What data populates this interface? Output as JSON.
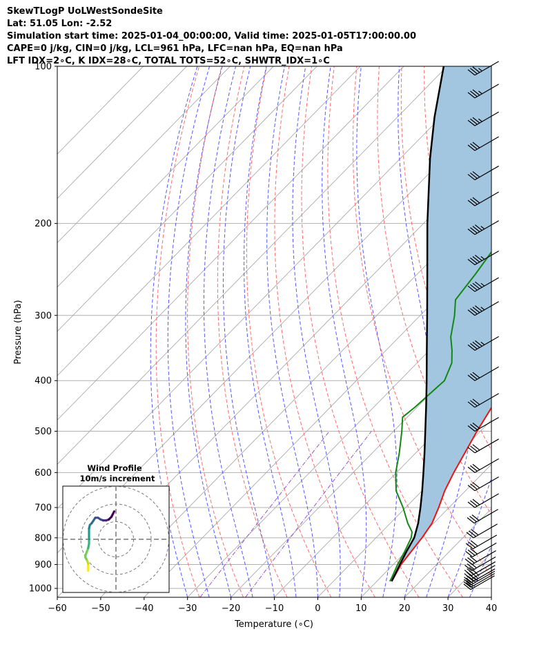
{
  "header": {
    "title": "SkewTLogP UoLWestSondeSite",
    "location": "Lat: 51.05   Lon: -2.52",
    "times": "Simulation start time: 2025-01-04_00:00:00, Valid time: 2025-01-05T17:00:00.00",
    "params": "CAPE=0 j/kg, CIN=0 j/kg, LCL=961 hPa, LFC=nan hPa, EQ=nan hPa",
    "indices": "LFT IDX=2∘C, K IDX=28∘C, TOTAL TOTS=52∘C, SHWTR_IDX=1∘C"
  },
  "colors": {
    "temperature": "#ee1111",
    "dewpoint": "#118811",
    "parcel": "#000000",
    "cape_fill": "#a3c6e0",
    "dry_adiabat": "#ff6b6b",
    "moist_adiabat": "#5555ff",
    "mixing_ratio": "#9a4fcf",
    "isotherm": "#aaaaaa"
  },
  "chart_data": {
    "type": "skewt",
    "xlabel": "Temperature (∘C)",
    "ylabel": "Pressure (hPa)",
    "xlim": [
      -60,
      40
    ],
    "ylim": [
      1040,
      100
    ],
    "x_ticks": [
      "−60",
      "−50",
      "−40",
      "−30",
      "−20",
      "−10",
      "0",
      "10",
      "20",
      "30",
      "40"
    ],
    "y_ticks": [
      "100",
      "200",
      "300",
      "400",
      "500",
      "600",
      "700",
      "800",
      "900",
      "1000"
    ],
    "grid": true,
    "series": [
      {
        "key": "temperature",
        "points": [
          [
            969,
            13.4
          ],
          [
            950,
            13.0
          ],
          [
            900,
            11.8
          ],
          [
            850,
            11.2
          ],
          [
            800,
            10.6
          ],
          [
            750,
            9.6
          ],
          [
            700,
            7.6
          ],
          [
            650,
            5.2
          ],
          [
            600,
            3.2
          ],
          [
            550,
            1.3
          ],
          [
            500,
            -0.8
          ],
          [
            450,
            -2.8
          ],
          [
            400,
            -4.5
          ],
          [
            350,
            -8.0
          ],
          [
            300,
            -12.8
          ],
          [
            275,
            -14.5
          ],
          [
            250,
            -15.8
          ],
          [
            225,
            -17.0
          ],
          [
            200,
            -18.0
          ],
          [
            175,
            -17.5
          ],
          [
            150,
            -15.5
          ],
          [
            125,
            -13.5
          ],
          [
            110,
            -12.0
          ],
          [
            100,
            -11.5
          ]
        ]
      },
      {
        "key": "dewpoint",
        "points": [
          [
            969,
            13.0
          ],
          [
            950,
            12.5
          ],
          [
            900,
            11.0
          ],
          [
            850,
            9.7
          ],
          [
            800,
            8.1
          ],
          [
            780,
            7.0
          ],
          [
            750,
            4.0
          ],
          [
            700,
            -0.6
          ],
          [
            650,
            -6.0
          ],
          [
            600,
            -10.2
          ],
          [
            550,
            -13.8
          ],
          [
            500,
            -18.1
          ],
          [
            470,
            -21.1
          ],
          [
            450,
            -20.5
          ],
          [
            400,
            -19.7
          ],
          [
            370,
            -22.0
          ],
          [
            350,
            -24.8
          ],
          [
            330,
            -28.1
          ],
          [
            300,
            -32.1
          ],
          [
            280,
            -35.4
          ],
          [
            250,
            -36.6
          ],
          [
            220,
            -38.3
          ],
          [
            200,
            -41.3
          ],
          [
            185,
            -43.4
          ],
          [
            160,
            -43.7
          ],
          [
            145,
            -43.6
          ],
          [
            130,
            -39.9
          ],
          [
            110,
            -36.5
          ],
          [
            100,
            -33.9
          ]
        ]
      },
      {
        "key": "parcel",
        "points": [
          [
            969,
            13.4
          ],
          [
            961,
            13.2
          ],
          [
            900,
            11.5
          ],
          [
            850,
            10.1
          ],
          [
            800,
            8.8
          ],
          [
            750,
            6.4
          ],
          [
            700,
            3.4
          ],
          [
            650,
            0.0
          ],
          [
            600,
            -3.8
          ],
          [
            550,
            -8.0
          ],
          [
            500,
            -12.7
          ],
          [
            450,
            -17.9
          ],
          [
            400,
            -23.8
          ],
          [
            350,
            -30.6
          ],
          [
            300,
            -38.4
          ],
          [
            250,
            -47.7
          ],
          [
            200,
            -59.1
          ],
          [
            150,
            -73.2
          ],
          [
            125,
            -81.5
          ],
          [
            100,
            -90.8
          ]
        ]
      }
    ],
    "wind_barbs": {
      "pressures": [
        1005,
        995,
        985,
        975,
        960,
        945,
        925,
        900,
        870,
        840,
        800,
        750,
        700,
        650,
        600,
        550,
        500,
        450,
        400,
        350,
        300,
        270,
        240,
        210,
        185,
        165,
        145,
        130,
        115,
        104
      ],
      "speeds_kt": [
        20,
        20,
        25,
        25,
        25,
        30,
        30,
        30,
        30,
        30,
        30,
        30,
        30,
        30,
        30,
        30,
        30,
        30,
        30,
        35,
        35,
        35,
        35,
        35,
        30,
        30,
        30,
        25,
        25,
        25
      ]
    },
    "hodograph": {
      "title": "Wind Profile",
      "subtitle": "10m/s increment",
      "points": [
        [
          -31,
          -35
        ],
        [
          -31,
          -30
        ],
        [
          -31,
          -27
        ],
        [
          -32,
          -24
        ],
        [
          -33,
          -22
        ],
        [
          -34,
          -20
        ],
        [
          -34,
          -18
        ],
        [
          -31,
          -10
        ],
        [
          -30,
          -5
        ],
        [
          -30,
          0
        ],
        [
          -30,
          5
        ],
        [
          -30,
          9
        ],
        [
          -30,
          12
        ],
        [
          -29,
          16
        ],
        [
          -27,
          18
        ],
        [
          -25,
          21
        ],
        [
          -23,
          24
        ],
        [
          -20,
          24
        ],
        [
          -17,
          22
        ],
        [
          -14,
          21
        ],
        [
          -11,
          21
        ],
        [
          -8,
          22
        ],
        [
          -5,
          25
        ],
        [
          -2,
          31
        ]
      ]
    }
  }
}
